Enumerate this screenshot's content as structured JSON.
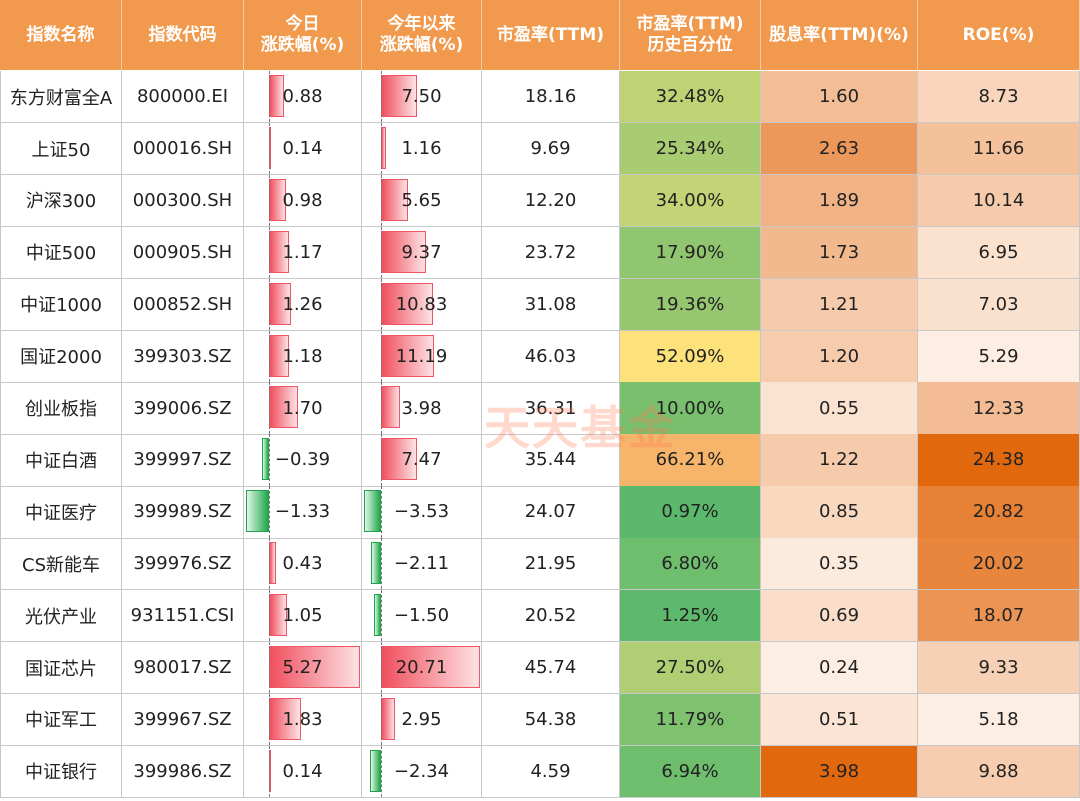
{
  "chart_data": {
    "type": "table",
    "headers": [
      "指数名称",
      "指数代码",
      "今日\n涨跌幅(%)",
      "今年以来\n涨跌幅(%)",
      "市盈率(TTM)",
      "市盈率(TTM)\n历史百分位",
      "股息率(TTM)(%)",
      "ROE(%)"
    ],
    "rows": [
      {
        "name": "东方财富全A",
        "code": "800000.EI",
        "today": "0.88",
        "ytd": "7.50",
        "pe": "18.16",
        "pe_pct": "32.48%",
        "div": "1.60",
        "roe": "8.73"
      },
      {
        "name": "上证50",
        "code": "000016.SH",
        "today": "0.14",
        "ytd": "1.16",
        "pe": "9.69",
        "pe_pct": "25.34%",
        "div": "2.63",
        "roe": "11.66"
      },
      {
        "name": "沪深300",
        "code": "000300.SH",
        "today": "0.98",
        "ytd": "5.65",
        "pe": "12.20",
        "pe_pct": "34.00%",
        "div": "1.89",
        "roe": "10.14"
      },
      {
        "name": "中证500",
        "code": "000905.SH",
        "today": "1.17",
        "ytd": "9.37",
        "pe": "23.72",
        "pe_pct": "17.90%",
        "div": "1.73",
        "roe": "6.95"
      },
      {
        "name": "中证1000",
        "code": "000852.SH",
        "today": "1.26",
        "ytd": "10.83",
        "pe": "31.08",
        "pe_pct": "19.36%",
        "div": "1.21",
        "roe": "7.03"
      },
      {
        "name": "国证2000",
        "code": "399303.SZ",
        "today": "1.18",
        "ytd": "11.19",
        "pe": "46.03",
        "pe_pct": "52.09%",
        "div": "1.20",
        "roe": "5.29"
      },
      {
        "name": "创业板指",
        "code": "399006.SZ",
        "today": "1.70",
        "ytd": "3.98",
        "pe": "36.31",
        "pe_pct": "10.00%",
        "div": "0.55",
        "roe": "12.33"
      },
      {
        "name": "中证白酒",
        "code": "399997.SZ",
        "today": "−0.39",
        "ytd": "7.47",
        "pe": "35.44",
        "pe_pct": "66.21%",
        "div": "1.22",
        "roe": "24.38"
      },
      {
        "name": "中证医疗",
        "code": "399989.SZ",
        "today": "−1.33",
        "ytd": "−3.53",
        "pe": "24.07",
        "pe_pct": "0.97%",
        "div": "0.85",
        "roe": "20.82"
      },
      {
        "name": "CS新能车",
        "code": "399976.SZ",
        "today": "0.43",
        "ytd": "−2.11",
        "pe": "21.95",
        "pe_pct": "6.80%",
        "div": "0.35",
        "roe": "20.02"
      },
      {
        "name": "光伏产业",
        "code": "931151.CSI",
        "today": "1.05",
        "ytd": "−1.50",
        "pe": "20.52",
        "pe_pct": "1.25%",
        "div": "0.69",
        "roe": "18.07"
      },
      {
        "name": "国证芯片",
        "code": "980017.SZ",
        "today": "5.27",
        "ytd": "20.71",
        "pe": "45.74",
        "pe_pct": "27.50%",
        "div": "0.24",
        "roe": "9.33"
      },
      {
        "name": "中证军工",
        "code": "399967.SZ",
        "today": "1.83",
        "ytd": "2.95",
        "pe": "54.38",
        "pe_pct": "11.79%",
        "div": "0.51",
        "roe": "5.18"
      },
      {
        "name": "中证银行",
        "code": "399986.SZ",
        "today": "0.14",
        "ytd": "−2.34",
        "pe": "4.59",
        "pe_pct": "6.94%",
        "div": "3.98",
        "roe": "9.88"
      }
    ]
  },
  "watermark": "天天基金",
  "colors": {
    "header_bg": "#f19a4e",
    "bar_pos": "#f04f5e",
    "bar_neg": "#1fa84a",
    "pct_low": "#5cb96b",
    "pct_mid": "#fde17a",
    "pct_high": "#f7b56b",
    "orange_low": "#fdeee3",
    "orange_high": "#e2680e"
  }
}
